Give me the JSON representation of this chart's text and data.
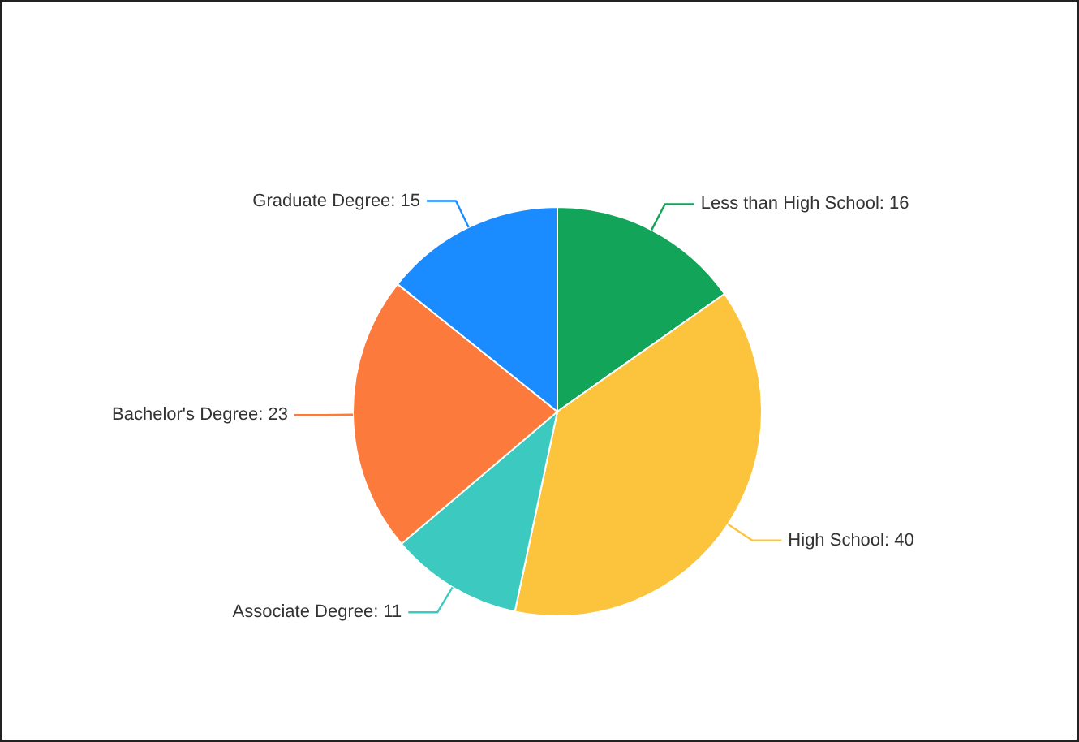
{
  "chart_data": {
    "type": "pie",
    "categories": [
      "Less than High School",
      "High School",
      "Associate Degree",
      "Bachelor's Degree",
      "Graduate Degree"
    ],
    "values": [
      16,
      40,
      11,
      23,
      15
    ],
    "colors": [
      "#12a55a",
      "#fcc43c",
      "#3ccac0",
      "#fc7a3c",
      "#1a8cff"
    ],
    "value_labels": [
      ": 16",
      ": 40",
      ": 11",
      ": 23",
      ": 15"
    ]
  }
}
